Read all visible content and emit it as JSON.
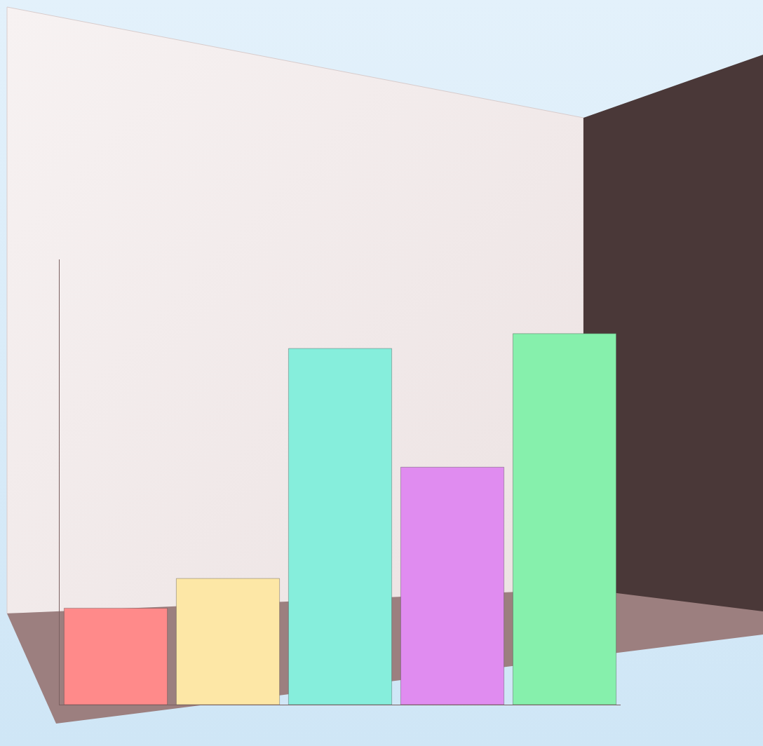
{
  "chart_data": {
    "type": "bar",
    "categories": [
      null,
      null,
      null,
      null,
      null
    ],
    "values": [
      13,
      17,
      48,
      32,
      50
    ],
    "colors": [
      "#ff8a8a",
      "#fde7a6",
      "#86eedc",
      "#e08cf0",
      "#86f0ac"
    ],
    "ylim": [
      0,
      60
    ],
    "tick_labels": false,
    "grid": false
  }
}
